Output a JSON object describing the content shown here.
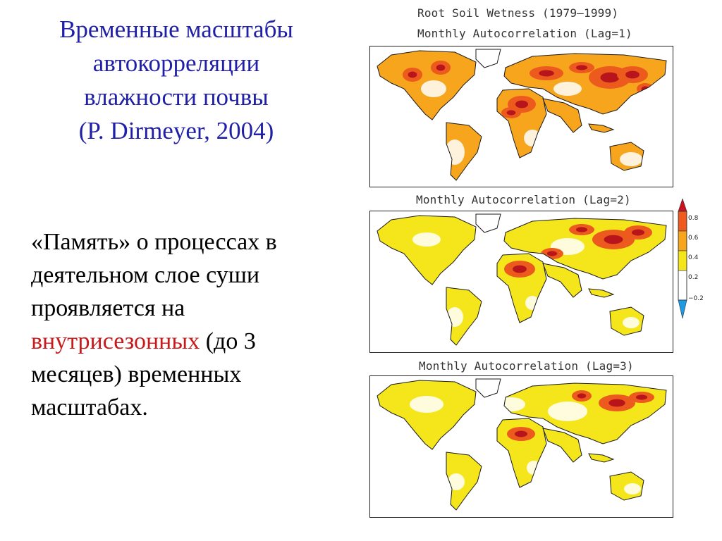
{
  "title_lines": [
    "Временные масштабы",
    "автокорреляции",
    "влажности почвы",
    "(P. Dirmeyer, 2004)"
  ],
  "body": {
    "part1": "«Память» о процессах в деятельном слое суши проявляется на ",
    "highlight": "внутрисезонных",
    "part2": " (до 3 месяцев) временных масштабах."
  },
  "figure": {
    "header": "Root Soil Wetness (1979–1999)",
    "panels": [
      {
        "title": "Monthly Autocorrelation (Lag=1)"
      },
      {
        "title": "Monthly Autocorrelation (Lag=2)"
      },
      {
        "title": "Monthly Autocorrelation (Lag=3)"
      }
    ],
    "colorbar": {
      "labels": [
        "0.8",
        "0.6",
        "0.4",
        "0.2",
        "−0.2"
      ],
      "colors": [
        "#c8141e",
        "#f05a1e",
        "#f7a51c",
        "#f5e61c",
        "#ffffff",
        "#1e9be6"
      ]
    },
    "palette": {
      "low": "#f5e61c",
      "mid": "#f7a51c",
      "high": "#ec5a1e",
      "max": "#b8141c",
      "coast": "#1a1a1a"
    }
  }
}
